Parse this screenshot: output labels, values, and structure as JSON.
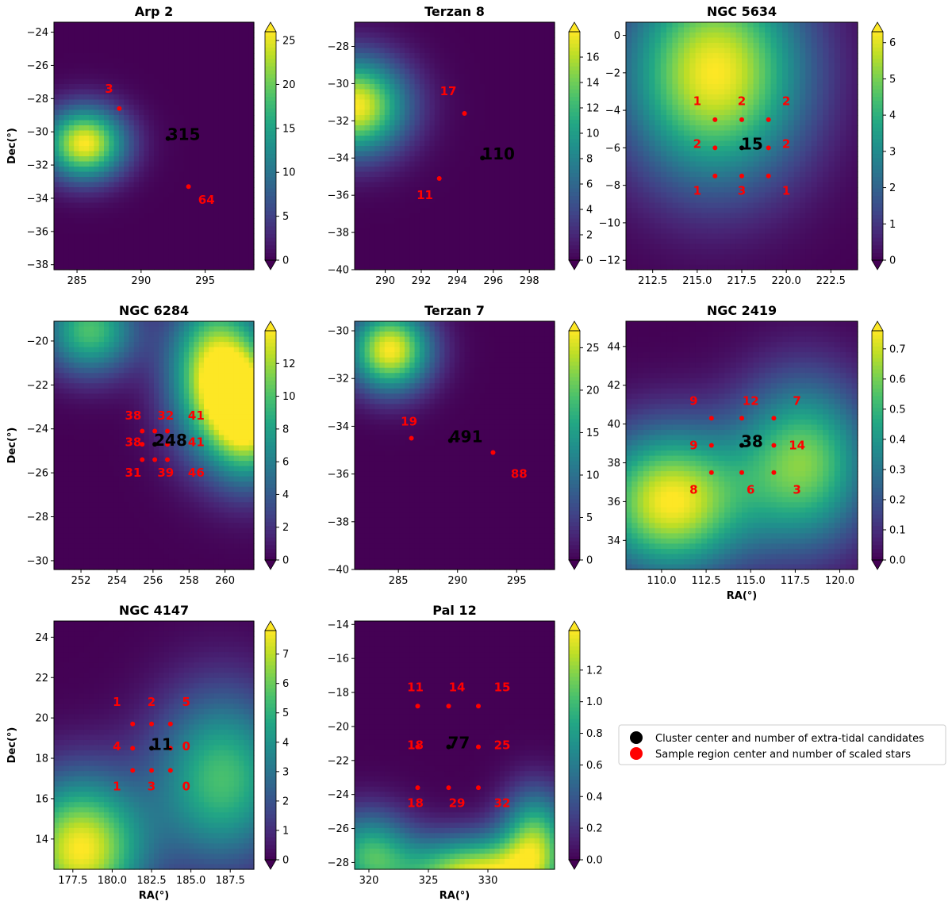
{
  "chart_data": [
    {
      "type": "heatmap",
      "title": "Arp 2",
      "xlabel": "",
      "ylabel": "Dec(°)",
      "xlim": [
        283.2,
        298.8
      ],
      "ylim": [
        -38.3,
        -23.4
      ],
      "xticks": [
        285,
        290,
        295
      ],
      "yticks": [
        -24,
        -26,
        -28,
        -30,
        -32,
        -34,
        -36,
        -38
      ],
      "cbar": {
        "min": 0,
        "max": 26,
        "ticks": [
          0,
          5,
          10,
          15,
          20,
          25
        ]
      },
      "density_peaks": [
        {
          "ra": 285.6,
          "dec": -30.7,
          "value": 26,
          "sx": 2.2,
          "sy": 1.5
        }
      ],
      "cluster": {
        "ra": 292.1,
        "dec": -30.4,
        "count": "315"
      },
      "regions": [
        {
          "ra": 288.3,
          "dec": -28.6,
          "count": "3",
          "lra": 287.5,
          "ldec": -27.4
        },
        {
          "ra": 293.7,
          "dec": -33.3,
          "count": "64",
          "lra": 295.1,
          "ldec": -34.1
        }
      ]
    },
    {
      "type": "heatmap",
      "title": "Terzan 8",
      "xlabel": "",
      "ylabel": "",
      "xlim": [
        288.3,
        299.4
      ],
      "ylim": [
        -40,
        -26.7
      ],
      "xticks": [
        290,
        292,
        294,
        296,
        298
      ],
      "yticks": [
        -28,
        -30,
        -32,
        -34,
        -36,
        -38,
        -40
      ],
      "cbar": {
        "min": 0,
        "max": 18,
        "ticks": [
          0,
          2,
          4,
          6,
          8,
          10,
          12,
          14,
          16
        ]
      },
      "density_peaks": [
        {
          "ra": 288.3,
          "dec": -31.2,
          "value": 18,
          "sx": 2.0,
          "sy": 1.8
        }
      ],
      "cluster": {
        "ra": 295.4,
        "dec": -34.0,
        "count": "110"
      },
      "regions": [
        {
          "ra": 294.4,
          "dec": -31.6,
          "count": "17",
          "lra": 293.5,
          "ldec": -30.4
        },
        {
          "ra": 293.0,
          "dec": -35.1,
          "count": "11",
          "lra": 292.2,
          "ldec": -36.0
        }
      ]
    },
    {
      "type": "heatmap",
      "title": "NGC 5634",
      "xlabel": "",
      "ylabel": "",
      "xlim": [
        211.0,
        224.0
      ],
      "ylim": [
        -12.5,
        0.7
      ],
      "xticks": [
        212.5,
        215.0,
        217.5,
        220.0,
        222.5
      ],
      "yticks": [
        0,
        -2,
        -4,
        -6,
        -8,
        -10,
        -12
      ],
      "cbar": {
        "min": 0,
        "max": 6.3,
        "ticks": [
          0,
          1,
          2,
          3,
          4,
          5,
          6
        ]
      },
      "density_peaks": [
        {
          "ra": 216.0,
          "dec": -2.0,
          "value": 6.3,
          "sx": 3.5,
          "sy": 4.0
        }
      ],
      "cluster": {
        "ra": 217.5,
        "dec": -6.0,
        "count": "15"
      },
      "regions": [
        {
          "ra": 216.0,
          "dec": -4.5,
          "count": "1",
          "lra": 215.0,
          "ldec": -3.5
        },
        {
          "ra": 217.5,
          "dec": -4.5,
          "count": "2",
          "lra": 217.5,
          "ldec": -3.5
        },
        {
          "ra": 219.0,
          "dec": -4.5,
          "count": "2",
          "lra": 220.0,
          "ldec": -3.5
        },
        {
          "ra": 216.0,
          "dec": -6.0,
          "count": "2",
          "lra": 215.0,
          "ldec": -5.8
        },
        {
          "ra": 219.0,
          "dec": -6.0,
          "count": "2",
          "lra": 220.0,
          "ldec": -5.8
        },
        {
          "ra": 216.0,
          "dec": -7.5,
          "count": "1",
          "lra": 215.0,
          "ldec": -8.3
        },
        {
          "ra": 217.5,
          "dec": -7.5,
          "count": "3",
          "lra": 217.5,
          "ldec": -8.3
        },
        {
          "ra": 219.0,
          "dec": -7.5,
          "count": "1",
          "lra": 220.0,
          "ldec": -8.3
        }
      ]
    },
    {
      "type": "heatmap",
      "title": "NGC 6284",
      "xlabel": "",
      "ylabel": "Dec(°)",
      "xlim": [
        250.5,
        261.6
      ],
      "ylim": [
        -30.4,
        -19.1
      ],
      "xticks": [
        252,
        254,
        256,
        258,
        260
      ],
      "yticks": [
        -20,
        -22,
        -24,
        -26,
        -28,
        -30
      ],
      "cbar": {
        "min": 0,
        "max": 14,
        "ticks": [
          0,
          2,
          4,
          6,
          8,
          10,
          12
        ]
      },
      "density_peaks": [
        {
          "ra": 259.5,
          "dec": -21.5,
          "value": 14,
          "sx": 1.8,
          "sy": 2.5
        },
        {
          "ra": 261.5,
          "dec": -23.5,
          "value": 12,
          "sx": 1.5,
          "sy": 2.0
        },
        {
          "ra": 252.5,
          "dec": -19.5,
          "value": 10,
          "sx": 1.8,
          "sy": 1.4
        }
      ],
      "cluster": {
        "ra": 256.1,
        "dec": -24.7,
        "count": "248"
      },
      "regions": [
        {
          "ra": 255.4,
          "dec": -24.1,
          "count": "38",
          "lra": 254.9,
          "ldec": -23.4
        },
        {
          "ra": 256.1,
          "dec": -24.1,
          "count": "32",
          "lra": 256.7,
          "ldec": -23.4
        },
        {
          "ra": 256.8,
          "dec": -24.1,
          "count": "41",
          "lra": 258.4,
          "ldec": -23.4
        },
        {
          "ra": 255.4,
          "dec": -24.7,
          "count": "38",
          "lra": 254.9,
          "ldec": -24.6
        },
        {
          "ra": 256.8,
          "dec": -24.7,
          "count": "41",
          "lra": 258.4,
          "ldec": -24.6
        },
        {
          "ra": 255.4,
          "dec": -25.4,
          "count": "31",
          "lra": 254.9,
          "ldec": -26.0
        },
        {
          "ra": 256.1,
          "dec": -25.4,
          "count": "39",
          "lra": 256.7,
          "ldec": -26.0
        },
        {
          "ra": 256.8,
          "dec": -25.4,
          "count": "46",
          "lra": 258.4,
          "ldec": -26.0
        }
      ]
    },
    {
      "type": "heatmap",
      "title": "Terzan 7",
      "xlabel": "",
      "ylabel": "",
      "xlim": [
        281.3,
        298.2
      ],
      "ylim": [
        -40,
        -29.6
      ],
      "xticks": [
        285,
        290,
        295
      ],
      "yticks": [
        -30,
        -32,
        -34,
        -36,
        -38,
        -40
      ],
      "cbar": {
        "min": 0,
        "max": 27,
        "ticks": [
          0,
          5,
          10,
          15,
          20,
          25
        ]
      },
      "density_peaks": [
        {
          "ra": 284.3,
          "dec": -30.8,
          "value": 27,
          "sx": 2.4,
          "sy": 1.2
        }
      ],
      "cluster": {
        "ra": 289.4,
        "dec": -34.6,
        "count": "491"
      },
      "regions": [
        {
          "ra": 286.1,
          "dec": -34.5,
          "count": "19",
          "lra": 285.9,
          "ldec": -33.8
        },
        {
          "ra": 293.0,
          "dec": -35.1,
          "count": "88",
          "lra": 295.2,
          "ldec": -36.0
        }
      ]
    },
    {
      "type": "heatmap",
      "title": "NGC 2419",
      "xlabel": "RA(°)",
      "ylabel": "",
      "xlim": [
        108.0,
        121.0
      ],
      "ylim": [
        32.5,
        45.3
      ],
      "xticks": [
        110.0,
        112.5,
        115.0,
        117.5,
        120.0
      ],
      "yticks": [
        34,
        36,
        38,
        40,
        42,
        44
      ],
      "cbar": {
        "min": 0,
        "max": 0.76,
        "ticks": [
          0.0,
          0.1,
          0.2,
          0.3,
          0.4,
          0.5,
          0.6,
          0.7
        ]
      },
      "density_peaks": [
        {
          "ra": 110.5,
          "dec": 36.0,
          "value": 0.76,
          "sx": 3.0,
          "sy": 2.6
        },
        {
          "ra": 118.0,
          "dec": 38.0,
          "value": 0.6,
          "sx": 2.6,
          "sy": 3.0
        }
      ],
      "cluster": {
        "ra": 114.5,
        "dec": 38.9,
        "count": "38"
      },
      "regions": [
        {
          "ra": 112.8,
          "dec": 40.3,
          "count": "9",
          "lra": 111.8,
          "ldec": 41.2
        },
        {
          "ra": 114.5,
          "dec": 40.3,
          "count": "12",
          "lra": 115.0,
          "ldec": 41.2
        },
        {
          "ra": 116.3,
          "dec": 40.3,
          "count": "7",
          "lra": 117.6,
          "ldec": 41.2
        },
        {
          "ra": 112.8,
          "dec": 38.9,
          "count": "9",
          "lra": 111.8,
          "ldec": 38.9
        },
        {
          "ra": 116.3,
          "dec": 38.9,
          "count": "14",
          "lra": 117.6,
          "ldec": 38.9
        },
        {
          "ra": 112.8,
          "dec": 37.5,
          "count": "8",
          "lra": 111.8,
          "ldec": 36.6
        },
        {
          "ra": 114.5,
          "dec": 37.5,
          "count": "6",
          "lra": 115.0,
          "ldec": 36.6
        },
        {
          "ra": 116.3,
          "dec": 37.5,
          "count": "3",
          "lra": 117.6,
          "ldec": 36.6
        }
      ]
    },
    {
      "type": "heatmap",
      "title": "NGC 4147",
      "xlabel": "RA(°)",
      "ylabel": "Dec(°)",
      "xlim": [
        176.3,
        189.0
      ],
      "ylim": [
        12.5,
        24.8
      ],
      "xticks": [
        177.5,
        180.0,
        182.5,
        185.0,
        187.5
      ],
      "yticks": [
        14,
        16,
        18,
        20,
        22,
        24
      ],
      "cbar": {
        "min": 0,
        "max": 7.8,
        "ticks": [
          0,
          1,
          2,
          3,
          4,
          5,
          6,
          7
        ]
      },
      "density_peaks": [
        {
          "ra": 178.0,
          "dec": 13.5,
          "value": 7.8,
          "sx": 2.8,
          "sy": 2.5
        },
        {
          "ra": 187.0,
          "dec": 17.0,
          "value": 5.5,
          "sx": 3.0,
          "sy": 3.0
        }
      ],
      "cluster": {
        "ra": 182.5,
        "dec": 18.5,
        "count": "11"
      },
      "regions": [
        {
          "ra": 181.3,
          "dec": 19.7,
          "count": "1",
          "lra": 180.3,
          "ldec": 20.8
        },
        {
          "ra": 182.5,
          "dec": 19.7,
          "count": "2",
          "lra": 182.5,
          "ldec": 20.8
        },
        {
          "ra": 183.7,
          "dec": 19.7,
          "count": "5",
          "lra": 184.7,
          "ldec": 20.8
        },
        {
          "ra": 181.3,
          "dec": 18.5,
          "count": "4",
          "lra": 180.3,
          "ldec": 18.6
        },
        {
          "ra": 183.7,
          "dec": 18.5,
          "count": "0",
          "lra": 184.7,
          "ldec": 18.6
        },
        {
          "ra": 181.3,
          "dec": 17.4,
          "count": "1",
          "lra": 180.3,
          "ldec": 16.6
        },
        {
          "ra": 182.5,
          "dec": 17.4,
          "count": "3",
          "lra": 182.5,
          "ldec": 16.6
        },
        {
          "ra": 183.7,
          "dec": 17.4,
          "count": "0",
          "lra": 184.7,
          "ldec": 16.6
        }
      ]
    },
    {
      "type": "heatmap",
      "title": "Pal 12",
      "xlabel": "RA(°)",
      "ylabel": "",
      "xlim": [
        318.8,
        335.6
      ],
      "ylim": [
        -28.4,
        -13.8
      ],
      "xticks": [
        320,
        325,
        330
      ],
      "yticks": [
        -14,
        -16,
        -18,
        -20,
        -22,
        -24,
        -26,
        -28
      ],
      "cbar": {
        "min": 0,
        "max": 1.45,
        "ticks": [
          0.0,
          0.2,
          0.4,
          0.6,
          0.8,
          1.0,
          1.2
        ]
      },
      "density_peaks": [
        {
          "ra": 329.0,
          "dec": -28.8,
          "value": 1.45,
          "sx": 4.5,
          "sy": 1.6
        },
        {
          "ra": 334.0,
          "dec": -26.5,
          "value": 1.0,
          "sx": 2.0,
          "sy": 2.0
        },
        {
          "ra": 320.0,
          "dec": -27.5,
          "value": 0.9,
          "sx": 2.5,
          "sy": 1.8
        }
      ],
      "cluster": {
        "ra": 326.7,
        "dec": -21.2,
        "count": "77"
      },
      "regions": [
        {
          "ra": 324.1,
          "dec": -18.8,
          "count": "11",
          "lra": 323.9,
          "ldec": -17.7
        },
        {
          "ra": 326.7,
          "dec": -18.8,
          "count": "14",
          "lra": 327.4,
          "ldec": -17.7
        },
        {
          "ra": 329.2,
          "dec": -18.8,
          "count": "15",
          "lra": 331.2,
          "ldec": -17.7
        },
        {
          "ra": 324.1,
          "dec": -21.2,
          "count": "18",
          "lra": 323.9,
          "ldec": -21.1
        },
        {
          "ra": 329.2,
          "dec": -21.2,
          "count": "25",
          "lra": 331.2,
          "ldec": -21.1
        },
        {
          "ra": 324.1,
          "dec": -23.6,
          "count": "18",
          "lra": 323.9,
          "ldec": -24.5
        },
        {
          "ra": 326.7,
          "dec": -23.6,
          "count": "29",
          "lra": 327.4,
          "ldec": -24.5
        },
        {
          "ra": 329.2,
          "dec": -23.6,
          "count": "32",
          "lra": 331.2,
          "ldec": -24.5
        }
      ]
    }
  ],
  "legend": {
    "placement": "right of last row",
    "items": [
      {
        "label": "Cluster center and number of extra-tidal candidates",
        "color": "#000000"
      },
      {
        "label": "Sample region center and number of scaled stars",
        "color": "#ff0000"
      }
    ]
  },
  "colors": {
    "cluster_marker": "#000000",
    "region_marker": "#ff0000",
    "colormap": "viridis"
  }
}
